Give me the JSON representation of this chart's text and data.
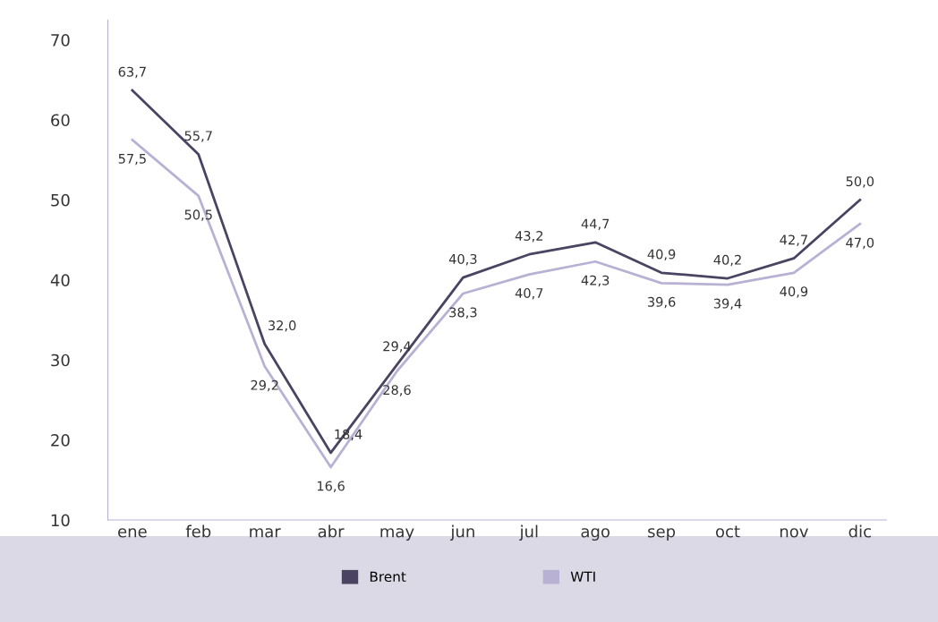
{
  "chart_data": {
    "type": "line",
    "categories": [
      "ene",
      "feb",
      "mar",
      "abr",
      "may",
      "jun",
      "jul",
      "ago",
      "sep",
      "oct",
      "nov",
      "dic"
    ],
    "series": [
      {
        "name": "Brent",
        "color": "#4a4462",
        "values": [
          63.7,
          55.7,
          32.0,
          18.4,
          29.4,
          40.3,
          43.2,
          44.7,
          40.9,
          40.2,
          42.7,
          50.0
        ],
        "value_labels": [
          "63,7",
          "55,7",
          "32,0",
          "18,4",
          "29,4",
          "40,3",
          "43,2",
          "44,7",
          "40,9",
          "40,2",
          "42,7",
          "50,0"
        ]
      },
      {
        "name": "WTI",
        "color": "#b9b1d3",
        "values": [
          57.5,
          50.5,
          29.2,
          16.6,
          28.6,
          38.3,
          40.7,
          42.3,
          39.6,
          39.4,
          40.9,
          47.0
        ],
        "value_labels": [
          "57,5",
          "50,5",
          "29,2",
          "16,6",
          "28,6",
          "38,3",
          "40,7",
          "42,3",
          "39,6",
          "39,4",
          "40,9",
          "47,0"
        ]
      }
    ],
    "ylim": [
      10,
      72.5
    ],
    "yticks": [
      10,
      20,
      30,
      40,
      50,
      60,
      70
    ],
    "grid": false,
    "legend": "bottom",
    "marker": "none",
    "line_style": "solid"
  }
}
